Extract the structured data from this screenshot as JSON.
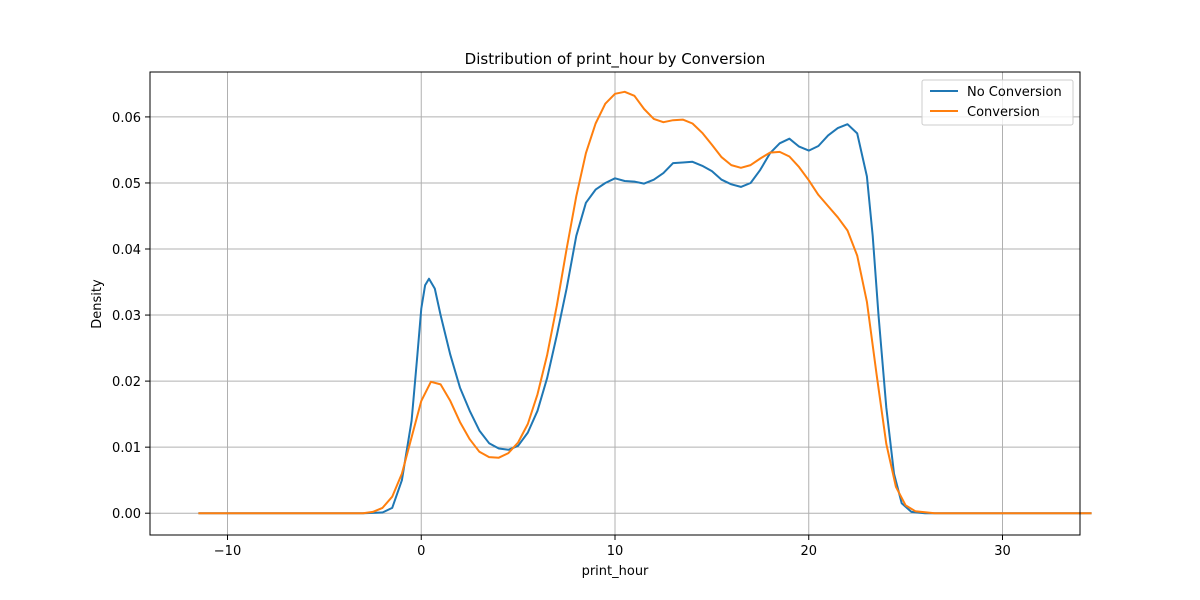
{
  "chart_data": {
    "type": "line",
    "title": "Distribution of print_hour by Conversion",
    "xlabel": "print_hour",
    "ylabel": "Density",
    "xlim": [
      -14,
      34
    ],
    "ylim": [
      -0.0033,
      0.0668
    ],
    "x_ticks": [
      -10,
      0,
      10,
      20,
      30
    ],
    "x_tick_labels": [
      "−10",
      "0",
      "10",
      "20",
      "30"
    ],
    "y_ticks": [
      0.0,
      0.01,
      0.02,
      0.03,
      0.04,
      0.05,
      0.06
    ],
    "y_tick_labels": [
      "0.00",
      "0.01",
      "0.02",
      "0.03",
      "0.04",
      "0.05",
      "0.06"
    ],
    "grid": true,
    "legend_position": "top-right",
    "series": [
      {
        "name": "No Conversion",
        "color": "#1f77b4",
        "points": [
          [
            -11.5,
            0.0
          ],
          [
            -5,
            0.0
          ],
          [
            -3,
            0.0
          ],
          [
            -2,
            0.0001
          ],
          [
            -1.5,
            0.0008
          ],
          [
            -1,
            0.005
          ],
          [
            -0.5,
            0.014
          ],
          [
            -0.2,
            0.024
          ],
          [
            0,
            0.031
          ],
          [
            0.2,
            0.0345
          ],
          [
            0.4,
            0.0355
          ],
          [
            0.7,
            0.034
          ],
          [
            1,
            0.03
          ],
          [
            1.5,
            0.024
          ],
          [
            2,
            0.019
          ],
          [
            2.5,
            0.0155
          ],
          [
            3,
            0.0125
          ],
          [
            3.5,
            0.0106
          ],
          [
            4,
            0.0098
          ],
          [
            4.5,
            0.0096
          ],
          [
            5,
            0.0102
          ],
          [
            5.5,
            0.0122
          ],
          [
            6,
            0.0155
          ],
          [
            6.5,
            0.0205
          ],
          [
            7,
            0.027
          ],
          [
            7.5,
            0.034
          ],
          [
            8,
            0.042
          ],
          [
            8.5,
            0.047
          ],
          [
            9,
            0.049
          ],
          [
            9.5,
            0.05
          ],
          [
            10,
            0.0507
          ],
          [
            10.5,
            0.0503
          ],
          [
            11,
            0.0502
          ],
          [
            11.5,
            0.0499
          ],
          [
            12,
            0.0505
          ],
          [
            12.5,
            0.0515
          ],
          [
            13,
            0.053
          ],
          [
            13.5,
            0.0531
          ],
          [
            14,
            0.0532
          ],
          [
            14.5,
            0.0526
          ],
          [
            15,
            0.0518
          ],
          [
            15.5,
            0.0505
          ],
          [
            16,
            0.0498
          ],
          [
            16.5,
            0.0494
          ],
          [
            17,
            0.05
          ],
          [
            17.5,
            0.052
          ],
          [
            18,
            0.0545
          ],
          [
            18.5,
            0.056
          ],
          [
            19,
            0.0567
          ],
          [
            19.5,
            0.0555
          ],
          [
            20,
            0.0549
          ],
          [
            20.5,
            0.0556
          ],
          [
            21,
            0.0572
          ],
          [
            21.5,
            0.0583
          ],
          [
            22,
            0.0589
          ],
          [
            22.5,
            0.0575
          ],
          [
            23,
            0.051
          ],
          [
            23.3,
            0.042
          ],
          [
            23.6,
            0.03
          ],
          [
            24,
            0.016
          ],
          [
            24.4,
            0.006
          ],
          [
            24.8,
            0.0015
          ],
          [
            25.3,
            0.0002
          ],
          [
            26,
            0.0
          ],
          [
            30,
            0.0
          ],
          [
            34.6,
            0.0
          ]
        ]
      },
      {
        "name": "Conversion",
        "color": "#ff7f0e",
        "points": [
          [
            -11.5,
            0.0
          ],
          [
            -5,
            0.0
          ],
          [
            -3,
            0.0
          ],
          [
            -2.5,
            0.0002
          ],
          [
            -2,
            0.0008
          ],
          [
            -1.5,
            0.0025
          ],
          [
            -1,
            0.006
          ],
          [
            -0.5,
            0.0115
          ],
          [
            0,
            0.017
          ],
          [
            0.5,
            0.0199
          ],
          [
            1,
            0.0195
          ],
          [
            1.5,
            0.017
          ],
          [
            2,
            0.0138
          ],
          [
            2.5,
            0.0112
          ],
          [
            3,
            0.0093
          ],
          [
            3.5,
            0.0085
          ],
          [
            4,
            0.0084
          ],
          [
            4.5,
            0.0091
          ],
          [
            5,
            0.0107
          ],
          [
            5.5,
            0.0135
          ],
          [
            6,
            0.018
          ],
          [
            6.5,
            0.024
          ],
          [
            7,
            0.0315
          ],
          [
            7.5,
            0.04
          ],
          [
            8,
            0.048
          ],
          [
            8.5,
            0.0545
          ],
          [
            9,
            0.059
          ],
          [
            9.5,
            0.062
          ],
          [
            10,
            0.0635
          ],
          [
            10.5,
            0.0638
          ],
          [
            11,
            0.0632
          ],
          [
            11.5,
            0.0612
          ],
          [
            12,
            0.0597
          ],
          [
            12.5,
            0.0592
          ],
          [
            13,
            0.0595
          ],
          [
            13.5,
            0.0596
          ],
          [
            14,
            0.059
          ],
          [
            14.5,
            0.0576
          ],
          [
            15,
            0.0558
          ],
          [
            15.5,
            0.0539
          ],
          [
            16,
            0.0527
          ],
          [
            16.5,
            0.0523
          ],
          [
            17,
            0.0527
          ],
          [
            17.5,
            0.0537
          ],
          [
            18,
            0.0546
          ],
          [
            18.5,
            0.0547
          ],
          [
            19,
            0.054
          ],
          [
            19.5,
            0.0524
          ],
          [
            20,
            0.0504
          ],
          [
            20.5,
            0.0482
          ],
          [
            21,
            0.0465
          ],
          [
            21.5,
            0.0448
          ],
          [
            22,
            0.0428
          ],
          [
            22.5,
            0.039
          ],
          [
            23,
            0.032
          ],
          [
            23.5,
            0.021
          ],
          [
            24,
            0.0105
          ],
          [
            24.5,
            0.004
          ],
          [
            25,
            0.0012
          ],
          [
            25.5,
            0.0003
          ],
          [
            26.5,
            0.0
          ],
          [
            30,
            0.0
          ],
          [
            34.6,
            0.0
          ]
        ]
      }
    ]
  }
}
